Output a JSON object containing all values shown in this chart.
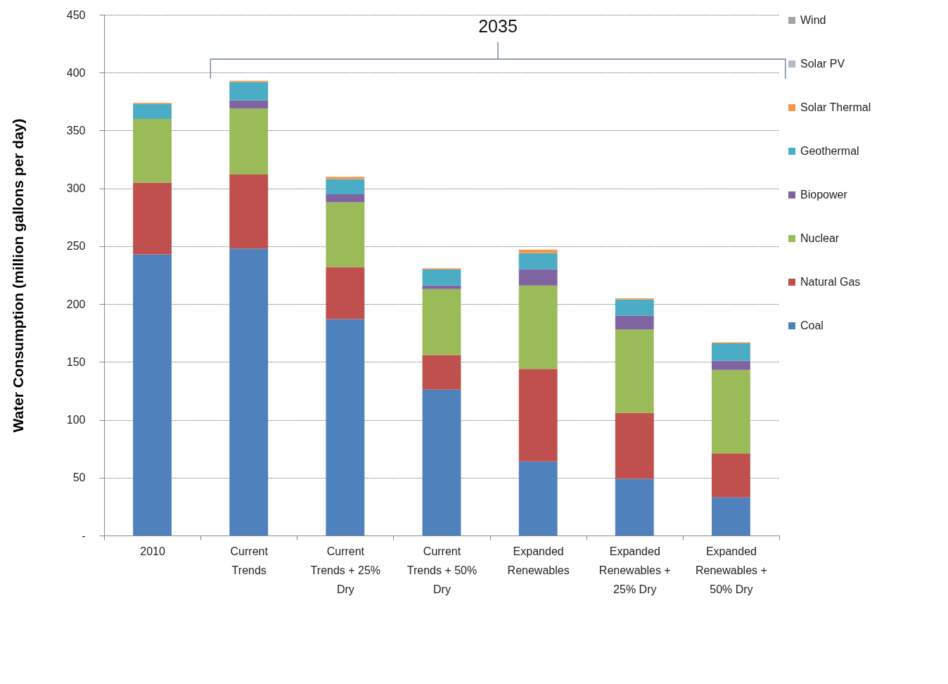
{
  "chart_data": {
    "type": "bar",
    "stacked": true,
    "ylabel": "Water Consumption (million gallons per day)",
    "categories": [
      "2010",
      "Current Trends",
      "Current Trends + 25% Dry",
      "Current Trends + 50% Dry",
      "Expanded Renewables",
      "Expanded Renewables + 25% Dry",
      "Expanded Renewables + 50% Dry"
    ],
    "series": [
      {
        "name": "Coal",
        "color": "#4f81bd",
        "values": [
          243,
          248,
          187,
          126,
          64,
          49,
          33
        ]
      },
      {
        "name": "Natural Gas",
        "color": "#c0504d",
        "values": [
          62,
          64,
          45,
          30,
          80,
          57,
          38
        ]
      },
      {
        "name": "Nuclear",
        "color": "#9bbb59",
        "values": [
          55,
          57,
          56,
          57,
          72,
          72,
          72
        ]
      },
      {
        "name": "Biopower",
        "color": "#8064a2",
        "values": [
          0,
          7,
          7,
          3,
          14,
          12,
          8
        ]
      },
      {
        "name": "Geothermal",
        "color": "#4bacc6",
        "values": [
          13,
          16,
          13,
          14,
          14,
          14,
          15
        ]
      },
      {
        "name": "Solar Thermal",
        "color": "#f79646",
        "values": [
          1,
          1,
          2,
          1,
          3,
          1,
          1
        ]
      },
      {
        "name": "Solar PV",
        "color": "#b3b9c6",
        "values": [
          0,
          0,
          0,
          0,
          0,
          0,
          0
        ]
      },
      {
        "name": "Wind",
        "color": "#a5a5a5",
        "values": [
          0,
          0,
          0,
          0,
          0,
          0,
          0
        ]
      }
    ],
    "ylim": [
      0,
      450
    ],
    "yticks": [
      {
        "value": 0,
        "label": "-"
      },
      50,
      100,
      150,
      200,
      250,
      300,
      350,
      400,
      450
    ],
    "grid": "y",
    "legend": "right",
    "annotations": [
      "2035"
    ]
  }
}
